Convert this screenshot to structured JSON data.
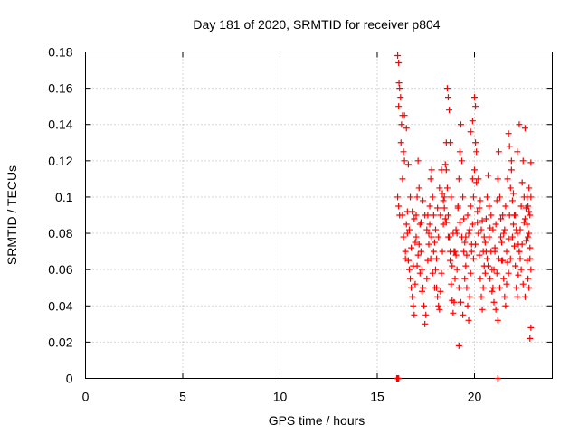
{
  "chart_data": {
    "type": "scatter",
    "title": "Day 181 of 2020, SRMTID for receiver p804",
    "xlabel": "GPS time / hours",
    "ylabel": "SRMTID / TECUs",
    "xlim": [
      0,
      24
    ],
    "ylim": [
      0,
      0.18
    ],
    "xticks": [
      0,
      5,
      10,
      15,
      20
    ],
    "xtick_labels": [
      "0",
      "5",
      "10",
      "15",
      "20"
    ],
    "yticks": [
      0,
      0.02,
      0.04,
      0.06,
      0.08,
      0.1,
      0.12,
      0.14,
      0.16,
      0.18
    ],
    "ytick_labels": [
      "0",
      "0.02",
      "0.04",
      "0.06",
      "0.08",
      "0.1",
      "0.12",
      "0.14",
      "0.16",
      "0.18"
    ],
    "grid": true,
    "marker": "+",
    "color": "#ff0000",
    "data_span_hours": [
      16.0,
      22.9
    ],
    "series": [
      {
        "name": "SRMTID",
        "points": [
          [
            16.05,
            0.178
          ],
          [
            16.1,
            0.174
          ],
          [
            16.12,
            0.163
          ],
          [
            16.15,
            0.16
          ],
          [
            16.2,
            0.155
          ],
          [
            16.25,
            0.14
          ],
          [
            16.1,
            0.15
          ],
          [
            16.3,
            0.145
          ],
          [
            16.22,
            0.13
          ],
          [
            16.35,
            0.125
          ],
          [
            16.05,
            0.1
          ],
          [
            16.1,
            0.095
          ],
          [
            16.15,
            0.09
          ],
          [
            16.3,
            0.11
          ],
          [
            16.4,
            0.12
          ],
          [
            16.5,
            0.085
          ],
          [
            16.55,
            0.08
          ],
          [
            16.45,
            0.07
          ],
          [
            16.6,
            0.065
          ],
          [
            16.65,
            0.06
          ],
          [
            16.7,
            0.055
          ],
          [
            16.75,
            0.05
          ],
          [
            16.8,
            0.045
          ],
          [
            16.85,
            0.04
          ],
          [
            16.9,
            0.035
          ],
          [
            16.95,
            0.075
          ],
          [
            17.0,
            0.09
          ],
          [
            17.05,
            0.1
          ],
          [
            17.1,
            0.12
          ],
          [
            17.15,
            0.105
          ],
          [
            17.2,
            0.085
          ],
          [
            17.25,
            0.07
          ],
          [
            17.3,
            0.06
          ],
          [
            17.35,
            0.05
          ],
          [
            17.4,
            0.04
          ],
          [
            17.45,
            0.03
          ],
          [
            17.5,
            0.035
          ],
          [
            17.55,
            0.055
          ],
          [
            17.6,
            0.065
          ],
          [
            17.65,
            0.08
          ],
          [
            17.7,
            0.095
          ],
          [
            17.75,
            0.11
          ],
          [
            17.8,
            0.115
          ],
          [
            17.85,
            0.1
          ],
          [
            17.9,
            0.09
          ],
          [
            17.95,
            0.075
          ],
          [
            18.0,
            0.06
          ],
          [
            18.05,
            0.05
          ],
          [
            18.1,
            0.045
          ],
          [
            18.15,
            0.04
          ],
          [
            18.2,
            0.038
          ],
          [
            18.25,
            0.048
          ],
          [
            18.3,
            0.058
          ],
          [
            18.35,
            0.07
          ],
          [
            18.4,
            0.085
          ],
          [
            18.45,
            0.1
          ],
          [
            18.5,
            0.118
          ],
          [
            18.55,
            0.13
          ],
          [
            18.6,
            0.105
          ],
          [
            18.65,
            0.09
          ],
          [
            18.7,
            0.078
          ],
          [
            18.75,
            0.065
          ],
          [
            18.8,
            0.052
          ],
          [
            18.85,
            0.043
          ],
          [
            18.9,
            0.036
          ],
          [
            18.95,
            0.042
          ],
          [
            19.0,
            0.055
          ],
          [
            19.05,
            0.068
          ],
          [
            19.1,
            0.08
          ],
          [
            19.15,
            0.095
          ],
          [
            19.2,
            0.11
          ],
          [
            19.25,
            0.125
          ],
          [
            19.3,
            0.14
          ],
          [
            19.35,
            0.12
          ],
          [
            19.4,
            0.1
          ],
          [
            19.45,
            0.088
          ],
          [
            19.5,
            0.075
          ],
          [
            19.55,
            0.062
          ],
          [
            19.6,
            0.05
          ],
          [
            19.65,
            0.04
          ],
          [
            19.7,
            0.032
          ],
          [
            19.75,
            0.045
          ],
          [
            19.8,
            0.058
          ],
          [
            19.85,
            0.07
          ],
          [
            19.9,
            0.085
          ],
          [
            19.95,
            0.1
          ],
          [
            20.0,
            0.115
          ],
          [
            20.05,
            0.13
          ],
          [
            20.1,
            0.108
          ],
          [
            20.15,
            0.092
          ],
          [
            20.2,
            0.08
          ],
          [
            20.25,
            0.068
          ],
          [
            20.3,
            0.055
          ],
          [
            20.35,
            0.045
          ],
          [
            20.4,
            0.038
          ],
          [
            20.45,
            0.05
          ],
          [
            20.5,
            0.062
          ],
          [
            20.55,
            0.075
          ],
          [
            20.6,
            0.088
          ],
          [
            20.65,
            0.1
          ],
          [
            20.7,
            0.112
          ],
          [
            20.75,
            0.095
          ],
          [
            20.8,
            0.083
          ],
          [
            20.85,
            0.07
          ],
          [
            20.9,
            0.06
          ],
          [
            20.95,
            0.05
          ],
          [
            21.0,
            0.06
          ],
          [
            21.05,
            0.072
          ],
          [
            21.1,
            0.085
          ],
          [
            21.15,
            0.098
          ],
          [
            21.2,
            0.11
          ],
          [
            21.25,
            0.125
          ],
          [
            21.3,
            0.1
          ],
          [
            21.35,
            0.088
          ],
          [
            21.4,
            0.075
          ],
          [
            21.45,
            0.065
          ],
          [
            21.5,
            0.055
          ],
          [
            21.55,
            0.045
          ],
          [
            21.6,
            0.04
          ],
          [
            21.65,
            0.052
          ],
          [
            21.7,
            0.064
          ],
          [
            21.75,
            0.077
          ],
          [
            21.8,
            0.09
          ],
          [
            21.85,
            0.105
          ],
          [
            21.9,
            0.12
          ],
          [
            21.95,
            0.098
          ],
          [
            22.0,
            0.085
          ],
          [
            22.05,
            0.073
          ],
          [
            22.1,
            0.062
          ],
          [
            22.15,
            0.05
          ],
          [
            22.2,
            0.045
          ],
          [
            22.25,
            0.057
          ],
          [
            22.3,
            0.07
          ],
          [
            22.35,
            0.082
          ],
          [
            22.4,
            0.095
          ],
          [
            22.45,
            0.108
          ],
          [
            22.5,
            0.12
          ],
          [
            22.55,
            0.1
          ],
          [
            22.6,
            0.088
          ],
          [
            22.65,
            0.076
          ],
          [
            22.7,
            0.065
          ],
          [
            22.75,
            0.055
          ],
          [
            22.8,
            0.08
          ],
          [
            22.85,
            0.09
          ],
          [
            22.9,
            0.1
          ],
          [
            22.9,
            0.119
          ],
          [
            22.85,
            0.072
          ],
          [
            22.8,
            0.05
          ],
          [
            22.9,
            0.028
          ],
          [
            22.85,
            0.022
          ],
          [
            16.4,
            0.145
          ],
          [
            16.5,
            0.138
          ],
          [
            16.6,
            0.118
          ],
          [
            16.7,
            0.1
          ],
          [
            16.8,
            0.092
          ],
          [
            16.9,
            0.088
          ],
          [
            17.0,
            0.078
          ],
          [
            17.1,
            0.068
          ],
          [
            17.2,
            0.058
          ],
          [
            17.3,
            0.048
          ],
          [
            17.6,
            0.09
          ],
          [
            17.7,
            0.085
          ],
          [
            17.8,
            0.078
          ],
          [
            17.9,
            0.07
          ],
          [
            18.0,
            0.082
          ],
          [
            18.1,
            0.094
          ],
          [
            18.2,
            0.105
          ],
          [
            18.3,
            0.115
          ],
          [
            18.4,
            0.098
          ],
          [
            18.5,
            0.088
          ],
          [
            18.6,
            0.16
          ],
          [
            18.65,
            0.155
          ],
          [
            18.7,
            0.148
          ],
          [
            18.75,
            0.13
          ],
          [
            18.55,
            0.115
          ],
          [
            18.8,
            0.1
          ],
          [
            18.9,
            0.08
          ],
          [
            19.0,
            0.07
          ],
          [
            19.1,
            0.06
          ],
          [
            19.2,
            0.05
          ],
          [
            19.3,
            0.042
          ],
          [
            19.4,
            0.035
          ],
          [
            19.2,
            0.018
          ],
          [
            19.5,
            0.055
          ],
          [
            19.6,
            0.068
          ],
          [
            19.7,
            0.08
          ],
          [
            19.8,
            0.095
          ],
          [
            19.9,
            0.11
          ],
          [
            20.0,
            0.155
          ],
          [
            20.05,
            0.15
          ],
          [
            19.9,
            0.142
          ],
          [
            19.8,
            0.136
          ],
          [
            20.1,
            0.125
          ],
          [
            20.2,
            0.11
          ],
          [
            20.3,
            0.098
          ],
          [
            20.4,
            0.087
          ],
          [
            20.5,
            0.078
          ],
          [
            20.6,
            0.07
          ],
          [
            20.7,
            0.062
          ],
          [
            20.8,
            0.055
          ],
          [
            20.9,
            0.048
          ],
          [
            21.0,
            0.042
          ],
          [
            21.1,
            0.038
          ],
          [
            21.2,
            0.032
          ],
          [
            21.3,
            0.05
          ],
          [
            21.4,
            0.065
          ],
          [
            21.5,
            0.08
          ],
          [
            21.6,
            0.095
          ],
          [
            21.7,
            0.11
          ],
          [
            21.75,
            0.135
          ],
          [
            21.8,
            0.128
          ],
          [
            21.9,
            0.115
          ],
          [
            22.0,
            0.102
          ],
          [
            22.1,
            0.09
          ],
          [
            22.2,
            0.08
          ],
          [
            22.3,
            0.07
          ],
          [
            22.4,
            0.06
          ],
          [
            22.5,
            0.052
          ],
          [
            22.6,
            0.045
          ],
          [
            22.7,
            0.085
          ],
          [
            22.75,
            0.095
          ],
          [
            22.8,
            0.105
          ],
          [
            22.6,
            0.138
          ],
          [
            22.3,
            0.14
          ],
          [
            22.2,
            0.125
          ],
          [
            16.0,
            0.0
          ],
          [
            16.05,
            0.0
          ],
          [
            16.1,
            0.0
          ],
          [
            21.2,
            0.0
          ],
          [
            16.3,
            0.09
          ],
          [
            16.35,
            0.078
          ],
          [
            16.45,
            0.066
          ],
          [
            16.55,
            0.092
          ],
          [
            16.65,
            0.082
          ],
          [
            16.75,
            0.072
          ],
          [
            16.85,
            0.062
          ],
          [
            16.95,
            0.052
          ],
          [
            17.05,
            0.062
          ],
          [
            17.15,
            0.074
          ],
          [
            17.25,
            0.086
          ],
          [
            17.35,
            0.098
          ],
          [
            17.45,
            0.09
          ],
          [
            17.55,
            0.082
          ],
          [
            17.65,
            0.074
          ],
          [
            17.75,
            0.066
          ],
          [
            17.85,
            0.058
          ],
          [
            17.95,
            0.05
          ],
          [
            18.05,
            0.066
          ],
          [
            18.15,
            0.078
          ],
          [
            18.25,
            0.09
          ],
          [
            18.35,
            0.102
          ],
          [
            18.45,
            0.094
          ],
          [
            18.55,
            0.086
          ],
          [
            18.65,
            0.078
          ],
          [
            18.75,
            0.07
          ],
          [
            18.85,
            0.062
          ],
          [
            18.95,
            0.07
          ],
          [
            19.05,
            0.082
          ],
          [
            19.15,
            0.094
          ],
          [
            19.25,
            0.086
          ],
          [
            19.35,
            0.078
          ],
          [
            19.45,
            0.07
          ],
          [
            19.55,
            0.078
          ],
          [
            19.65,
            0.09
          ],
          [
            19.75,
            0.082
          ],
          [
            19.85,
            0.074
          ],
          [
            19.95,
            0.066
          ],
          [
            20.05,
            0.074
          ],
          [
            20.15,
            0.086
          ],
          [
            20.25,
            0.094
          ],
          [
            20.35,
            0.082
          ],
          [
            20.45,
            0.07
          ],
          [
            20.55,
            0.058
          ],
          [
            20.65,
            0.066
          ],
          [
            20.75,
            0.078
          ],
          [
            20.85,
            0.09
          ],
          [
            20.95,
            0.082
          ],
          [
            21.05,
            0.07
          ],
          [
            21.15,
            0.058
          ],
          [
            21.25,
            0.066
          ],
          [
            21.35,
            0.078
          ],
          [
            21.45,
            0.09
          ],
          [
            21.55,
            0.082
          ],
          [
            21.65,
            0.07
          ],
          [
            21.75,
            0.058
          ],
          [
            21.85,
            0.066
          ],
          [
            21.95,
            0.078
          ],
          [
            22.05,
            0.09
          ],
          [
            22.15,
            0.082
          ],
          [
            22.25,
            0.074
          ],
          [
            22.35,
            0.066
          ],
          [
            22.45,
            0.074
          ],
          [
            22.55,
            0.086
          ],
          [
            22.65,
            0.094
          ],
          [
            22.75,
            0.078
          ],
          [
            22.85,
            0.066
          ],
          [
            22.9,
            0.06
          ],
          [
            22.7,
            0.1
          ],
          [
            22.8,
            0.092
          ]
        ]
      }
    ]
  }
}
